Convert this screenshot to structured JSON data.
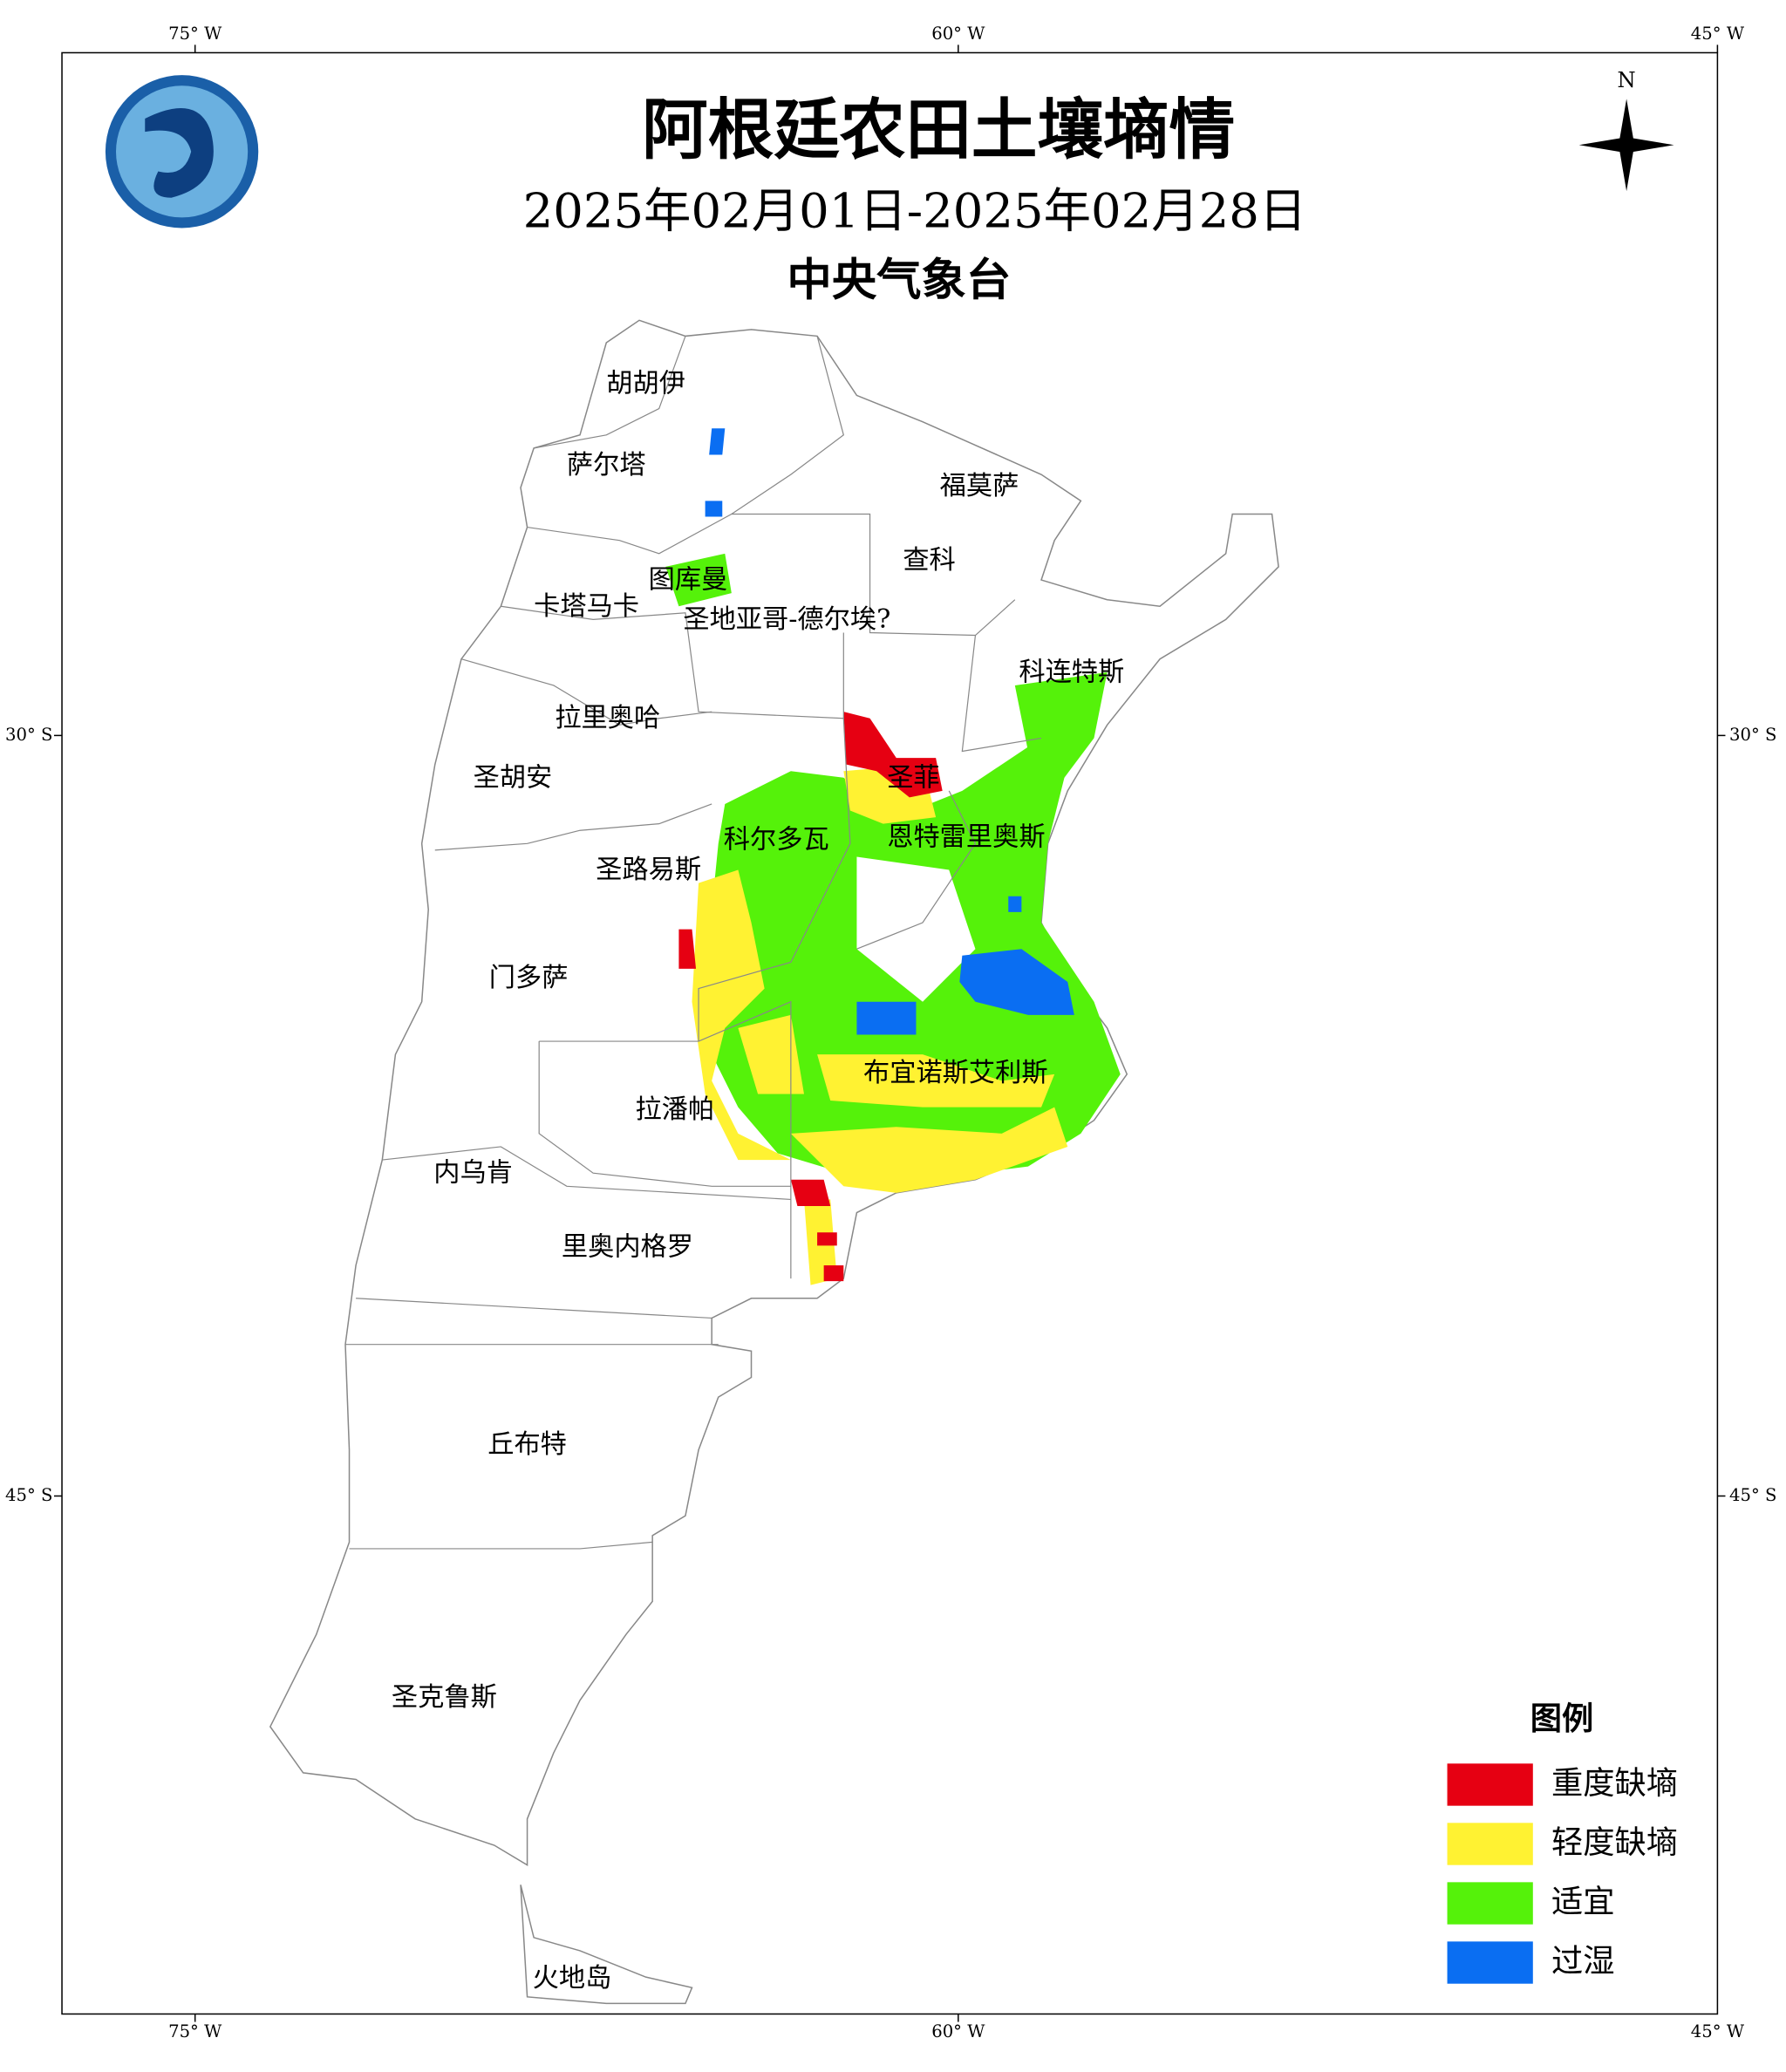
{
  "title": "阿根廷农田土壤墒情",
  "subtitle": "2025年02月01日-2025年02月28日",
  "agency": "中央气象台",
  "north_label": "N",
  "lon_labels": [
    "75° W",
    "60° W",
    "45° W"
  ],
  "lat_labels": [
    "30° S",
    "45° S"
  ],
  "provinces": [
    "胡胡伊",
    "萨尔塔",
    "福莫萨",
    "图库曼",
    "查科",
    "卡塔马卡",
    "圣地亚哥-德尔埃?",
    "科连特斯",
    "拉里奥哈",
    "圣胡安",
    "圣菲",
    "科尔多瓦",
    "恩特雷里奥斯",
    "圣路易斯",
    "门多萨",
    "布宜诺斯艾利斯",
    "拉潘帕",
    "内乌肯",
    "里奥内格罗",
    "丘布特",
    "圣克鲁斯",
    "火地岛"
  ],
  "legend": {
    "title": "图例",
    "items": [
      {
        "name": "重度缺墒",
        "color": "#e60012"
      },
      {
        "name": "轻度缺墒",
        "color": "#fff232"
      },
      {
        "name": "适宜",
        "color": "#55f20a"
      },
      {
        "name": "过湿",
        "color": "#0a6ef2"
      }
    ]
  }
}
